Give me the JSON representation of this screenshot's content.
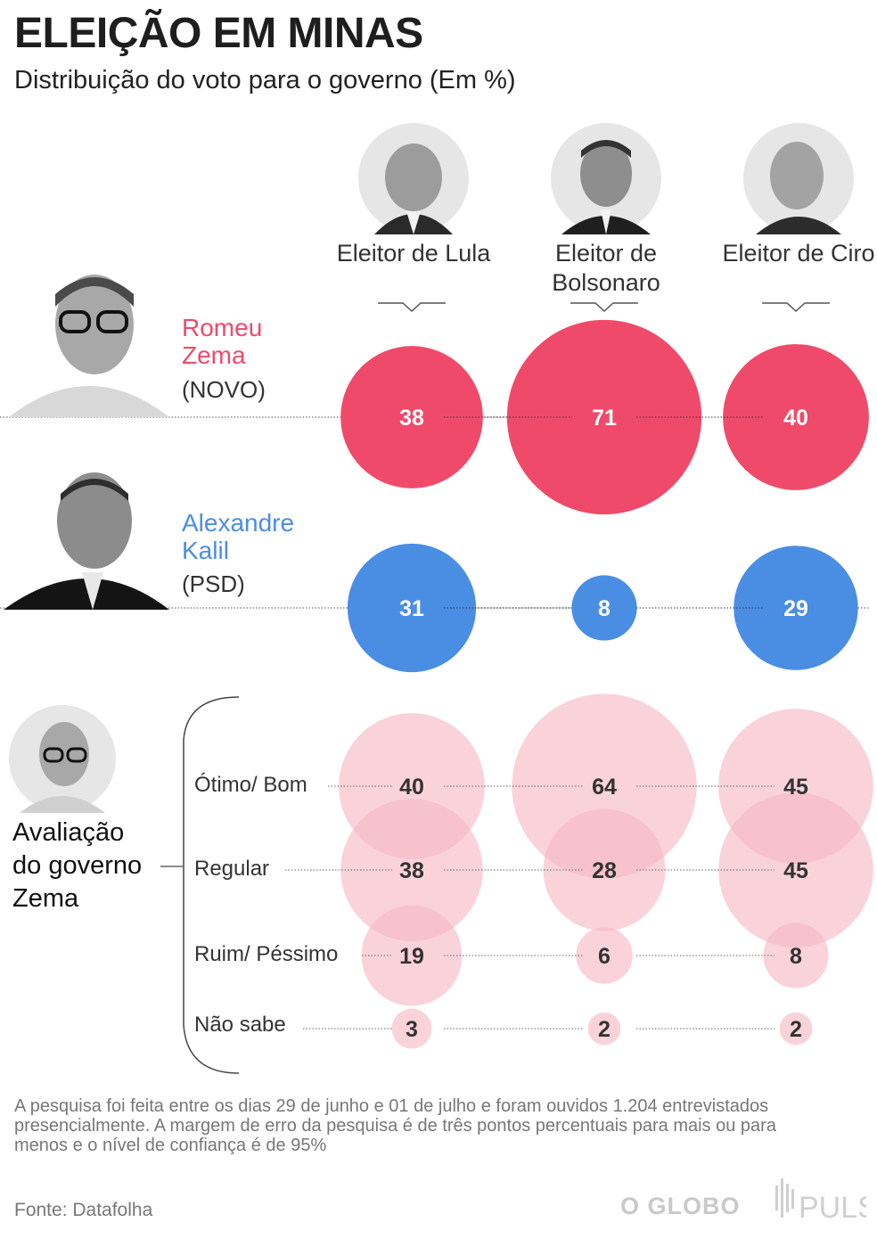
{
  "header": {
    "title": "ELEIÇÃO EM MINAS",
    "subtitle": "Distribuição do voto para o governo (Em %)"
  },
  "columns": [
    {
      "label": "Eleitor\nde Lula"
    },
    {
      "label": "Eleitor de\nBolsonaro"
    },
    {
      "label": "Eleitor\nde Ciro"
    }
  ],
  "candidates": [
    {
      "name": "Romeu\nZema",
      "party": "(NOVO)",
      "color": "#f04a6a"
    },
    {
      "name": "Alexandre\nKalil",
      "party": "(PSD)",
      "color": "#4a8ee4"
    }
  ],
  "evaluation": {
    "title": "Avaliação\ndo governo\nZema",
    "color": "#f7b8c4",
    "rows": [
      {
        "label": "Ótimo/ Bom"
      },
      {
        "label": "Regular"
      },
      {
        "label": "Ruim/ Péssimo"
      },
      {
        "label": "Não sabe"
      }
    ]
  },
  "chart_data": {
    "type": "bubble",
    "title": "ELEIÇÃO EM MINAS",
    "subtitle": "Distribuição do voto para o governo (Em %)",
    "categories": [
      "Eleitor de Lula",
      "Eleitor de Bolsonaro",
      "Eleitor de Ciro"
    ],
    "vote_intention": [
      {
        "name": "Romeu Zema (NOVO)",
        "values": [
          38,
          71,
          40
        ]
      },
      {
        "name": "Alexandre Kalil (PSD)",
        "values": [
          31,
          8,
          29
        ]
      }
    ],
    "zema_government_evaluation": [
      {
        "name": "Ótimo/ Bom",
        "values": [
          40,
          64,
          45
        ]
      },
      {
        "name": "Regular",
        "values": [
          38,
          28,
          45
        ]
      },
      {
        "name": "Ruim/ Péssimo",
        "values": [
          19,
          6,
          8
        ]
      },
      {
        "name": "Não sabe",
        "values": [
          3,
          2,
          2
        ]
      }
    ]
  },
  "footer": {
    "note": "A pesquisa foi feita entre os dias 29 de junho e 01 de julho e foram ouvidos 1.204 entrevistados presencialmente. A margem de erro da pesquisa é de três pontos percentuais para mais ou para menos e o nível de confiança é de 95%",
    "source": "Fonte: Datafolha",
    "logo_globo": "O GLOBO",
    "logo_pulso": "PULSO"
  }
}
